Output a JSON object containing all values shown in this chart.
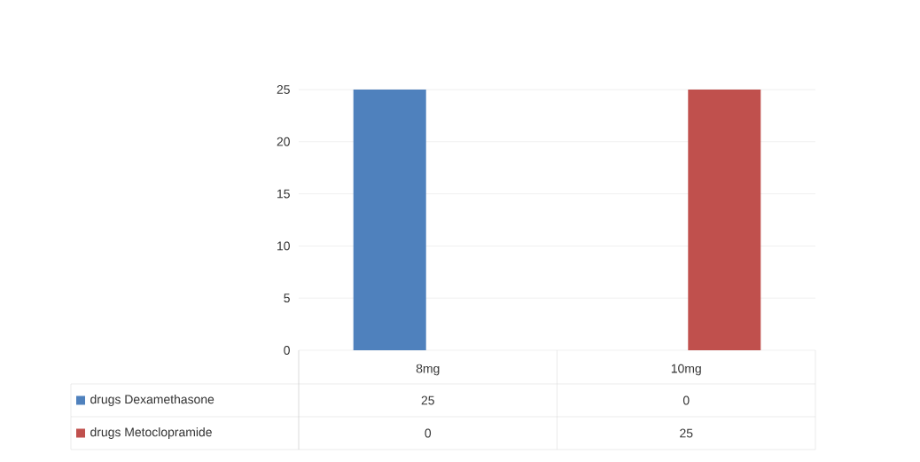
{
  "chart_data": {
    "type": "bar",
    "categories": [
      "8mg",
      "10mg"
    ],
    "series": [
      {
        "name": "drugs Dexamethasone",
        "color": "#4f81bd",
        "values": [
          25,
          0
        ]
      },
      {
        "name": "drugs Metoclopramide",
        "color": "#c0504d",
        "values": [
          0,
          25
        ]
      }
    ],
    "ylim": [
      0,
      25
    ],
    "yticks": [
      0,
      5,
      10,
      15,
      20,
      25
    ],
    "grid": "y",
    "legend": "bottom",
    "data_labels": true
  }
}
